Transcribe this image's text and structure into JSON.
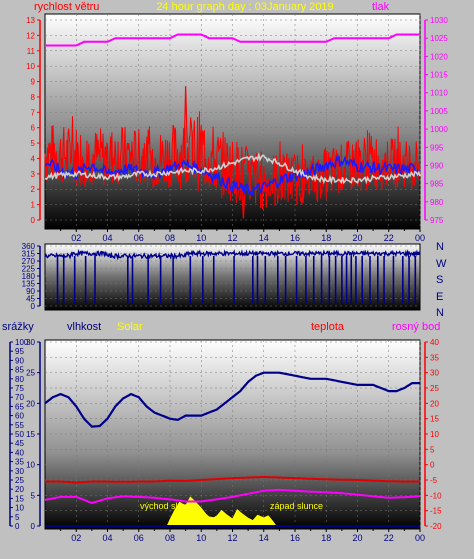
{
  "colors": {
    "background": "#c0c0c0",
    "wind": "#ff0000",
    "wind_avg": "#1a1aff",
    "gust_avg": "#d0d0d0",
    "pressure": "#ff00ff",
    "direction": "#00008b",
    "humidity": "#00008b",
    "temperature": "#e00000",
    "dewpoint": "#ff00ff",
    "solar": "#ffff00",
    "rain": "#000080"
  },
  "chart_data": [
    {
      "type": "line",
      "title": "24 hour graph day : 03January 2019",
      "left_label": "rychlost větru",
      "right_label": "tlak",
      "x_ticks": [
        "02",
        "04",
        "06",
        "08",
        "10",
        "12",
        "14",
        "16",
        "18",
        "20",
        "22",
        "00"
      ],
      "y_left": {
        "range": [
          0,
          13
        ],
        "ticks": [
          0,
          1,
          2,
          3,
          4,
          5,
          6,
          7,
          8,
          9,
          10,
          11,
          12,
          13
        ]
      },
      "y_right": {
        "range": [
          975,
          1030
        ],
        "ticks": [
          975,
          980,
          985,
          990,
          995,
          1000,
          1005,
          1010,
          1015,
          1020,
          1025,
          1030
        ]
      },
      "series": [
        {
          "name": "tlak",
          "axis": "right",
          "color_key": "pressure",
          "x": [
            0,
            2,
            2.5,
            4,
            4.5,
            6,
            6.5,
            8,
            8.5,
            10,
            10.5,
            12,
            12.5,
            14,
            14.5,
            16,
            16.5,
            18,
            18.5,
            20,
            20.5,
            22,
            22.5,
            24
          ],
          "values": [
            1023,
            1023,
            1024,
            1024,
            1025,
            1025,
            1025,
            1025,
            1026,
            1026,
            1025,
            1025,
            1024,
            1024,
            1024,
            1024,
            1024,
            1024,
            1025,
            1025,
            1025,
            1025,
            1026,
            1026
          ]
        },
        {
          "name": "wind_max",
          "axis": "left",
          "color_key": "wind",
          "x": [
            0,
            1,
            2,
            3,
            4,
            5,
            6,
            7,
            8,
            9,
            10,
            11,
            12,
            13,
            14,
            15,
            16,
            17,
            18,
            19,
            20,
            21,
            22,
            23,
            24
          ],
          "values": [
            6.5,
            6.2,
            6.3,
            6.0,
            6.1,
            6.2,
            6.0,
            5.8,
            6.2,
            6.8,
            7.2,
            6.0,
            5.5,
            4.8,
            4.5,
            4.5,
            4.5,
            4.2,
            4.8,
            5.0,
            5.5,
            5.8,
            5.5,
            5.2,
            5.5
          ]
        },
        {
          "name": "wind_min",
          "axis": "left",
          "color_key": "wind",
          "x": [
            0,
            1,
            2,
            3,
            4,
            5,
            6,
            7,
            8,
            9,
            10,
            11,
            12,
            13,
            14,
            15,
            16,
            17,
            18,
            19,
            20,
            21,
            22,
            23,
            24
          ],
          "values": [
            2.2,
            2.3,
            2.1,
            2.2,
            2.0,
            2.3,
            2.2,
            2.0,
            2.1,
            2.0,
            1.8,
            1.5,
            1.2,
            0.8,
            0.6,
            0.7,
            0.9,
            1.0,
            1.3,
            1.6,
            1.8,
            1.9,
            2.0,
            2.1,
            2.0
          ]
        },
        {
          "name": "wind_avg",
          "axis": "left",
          "color_key": "wind_avg",
          "x": [
            0,
            1,
            2,
            3,
            4,
            5,
            6,
            7,
            8,
            9,
            10,
            11,
            12,
            13,
            14,
            15,
            16,
            17,
            18,
            19,
            20,
            21,
            22,
            23,
            24
          ],
          "values": [
            3.8,
            3.2,
            3.0,
            3.6,
            3.0,
            3.3,
            3.2,
            3.0,
            3.4,
            3.6,
            3.3,
            2.8,
            2.2,
            1.9,
            2.1,
            2.6,
            2.9,
            3.1,
            3.6,
            3.9,
            3.5,
            3.4,
            3.3,
            3.3,
            3.3
          ]
        },
        {
          "name": "gust_avg",
          "axis": "left",
          "color_key": "gust_avg",
          "x": [
            0,
            1,
            2,
            3,
            4,
            5,
            6,
            7,
            8,
            9,
            10,
            11,
            12,
            13,
            14,
            15,
            16,
            17,
            18,
            19,
            20,
            21,
            22,
            23,
            24
          ],
          "values": [
            2.8,
            2.9,
            3.0,
            2.9,
            2.8,
            2.8,
            3.0,
            3.0,
            3.1,
            3.2,
            3.2,
            3.4,
            3.7,
            4.0,
            4.1,
            3.7,
            3.2,
            2.8,
            2.6,
            2.6,
            2.6,
            2.7,
            2.8,
            2.9,
            3.0
          ]
        }
      ]
    },
    {
      "type": "line",
      "compass": [
        "N",
        "W",
        "S",
        "E",
        "N"
      ],
      "x_ticks": [],
      "y": {
        "range": [
          0,
          360
        ],
        "ticks": [
          0,
          45,
          90,
          135,
          180,
          225,
          270,
          315,
          360
        ]
      },
      "series": [
        {
          "name": "direction",
          "color_key": "direction",
          "x": [
            0,
            1.6,
            1.7,
            3.9,
            4,
            9.0,
            9.1,
            24
          ],
          "values": [
            300,
            300,
            315,
            315,
            300,
            300,
            315,
            315
          ]
        }
      ],
      "dips": [
        0.8,
        1.2,
        1.9,
        2.6,
        3.2,
        5.3,
        5.6,
        6.6,
        7.4,
        8.2,
        9.3,
        10.1,
        10.8,
        12.1,
        13.3,
        13.6,
        14.1,
        14.9,
        15.4,
        16.1,
        16.7,
        17.2,
        17.7,
        18.2,
        18.6,
        19.0,
        19.3,
        19.6,
        19.9,
        20.3,
        20.8,
        21.3,
        21.7,
        22.3,
        22.9,
        23.3,
        23.7
      ]
    },
    {
      "type": "line",
      "labels": {
        "rain": "srážky",
        "humidity": "vlhkost",
        "solar": "Solar",
        "temperature": "teplota",
        "dewpoint": "rosný bod"
      },
      "annotations": [
        "východ slunce",
        "západ slunce"
      ],
      "x_ticks": [
        "02",
        "04",
        "06",
        "08",
        "10",
        "12",
        "14",
        "16",
        "18",
        "20",
        "22",
        "00"
      ],
      "y_rain": {
        "range": [
          0,
          100
        ],
        "ticks": [
          0,
          5,
          10,
          15,
          20,
          25,
          30,
          35,
          40,
          45,
          50,
          55,
          60,
          65,
          70,
          75,
          80,
          85,
          90,
          95,
          100
        ]
      },
      "y_humidity": {
        "range": [
          0,
          30
        ],
        "ticks": [
          0,
          5,
          10,
          15,
          20,
          25,
          30
        ]
      },
      "y_temperature": {
        "range": [
          -20,
          40
        ],
        "ticks": [
          -20,
          -15,
          -10,
          -5,
          0,
          5,
          10,
          15,
          20,
          25,
          30,
          35,
          40
        ]
      },
      "series": [
        {
          "name": "vlhkost",
          "axis": "humidity",
          "color_key": "humidity",
          "x": [
            0,
            0.5,
            1,
            1.5,
            2,
            2.5,
            3,
            3.5,
            4,
            4.5,
            5,
            5.5,
            6,
            6.5,
            7,
            7.5,
            8,
            8.5,
            9,
            9.5,
            10,
            10.5,
            11,
            11.5,
            12,
            12.5,
            13,
            13.5,
            14,
            14.5,
            15,
            16,
            17,
            18,
            19,
            20,
            21,
            22,
            22.5,
            23,
            23.5,
            24
          ],
          "values": [
            20,
            21,
            21.5,
            21,
            19.5,
            17.5,
            16.2,
            16.3,
            17.5,
            19.5,
            20.8,
            21.5,
            21,
            19.5,
            18.5,
            18,
            17.5,
            17.3,
            18,
            18,
            18,
            18.5,
            19,
            20,
            21,
            22,
            23.5,
            24.5,
            25,
            25,
            25,
            24.5,
            24,
            24,
            23.5,
            23,
            23,
            22,
            22,
            22.5,
            23.3,
            23.3
          ]
        },
        {
          "name": "teplota",
          "axis": "temperature",
          "color_key": "temperature",
          "x": [
            0,
            1,
            2,
            3,
            4,
            5,
            6,
            7,
            8,
            9,
            10,
            11,
            12,
            13,
            14,
            15,
            16,
            17,
            18,
            19,
            20,
            21,
            22,
            23,
            24
          ],
          "values": [
            -5.5,
            -5.5,
            -5.8,
            -5.5,
            -5.5,
            -5.6,
            -5.5,
            -5.5,
            -5.2,
            -5.3,
            -5,
            -4.7,
            -4.4,
            -4.2,
            -4,
            -4.2,
            -4.4,
            -4.6,
            -4.8,
            -4.9,
            -5,
            -5.2,
            -5.4,
            -5.5,
            -5.5
          ]
        },
        {
          "name": "rosný bod",
          "axis": "temperature",
          "color_key": "dewpoint",
          "x": [
            0,
            1,
            2,
            3,
            4,
            5,
            6,
            7,
            8,
            9,
            10,
            11,
            12,
            13,
            14,
            15,
            16,
            17,
            18,
            19,
            20,
            21,
            22,
            23,
            24
          ],
          "values": [
            -11.5,
            -10.5,
            -10.5,
            -12.5,
            -11,
            -10.3,
            -10.5,
            -10.8,
            -11.3,
            -12,
            -12,
            -11.3,
            -10.5,
            -9.5,
            -8.5,
            -8.2,
            -8.5,
            -8.8,
            -9,
            -9.3,
            -9.8,
            -10.3,
            -10.8,
            -10.6,
            -10.3
          ]
        },
        {
          "name": "Solar",
          "axis": "rain",
          "color_key": "solar",
          "fill": true,
          "x": [
            7.8,
            8,
            8.3,
            8.6,
            9,
            9.3,
            9.6,
            10,
            10.3,
            10.5,
            10.8,
            11,
            11.3,
            11.6,
            12,
            12.3,
            12.6,
            13,
            13.3,
            13.6,
            14,
            14.3,
            14.6,
            14.8
          ],
          "values": [
            0,
            3,
            8,
            12,
            11,
            14,
            13,
            9,
            6,
            4,
            3,
            4,
            7,
            5,
            2,
            8,
            6,
            4,
            3,
            5,
            3,
            4,
            2,
            0
          ]
        },
        {
          "name": "srážky",
          "axis": "rain",
          "color_key": "rain",
          "x": [
            0,
            18.7,
            18.7,
            24
          ],
          "values": [
            0,
            0,
            0,
            0
          ]
        }
      ]
    }
  ]
}
